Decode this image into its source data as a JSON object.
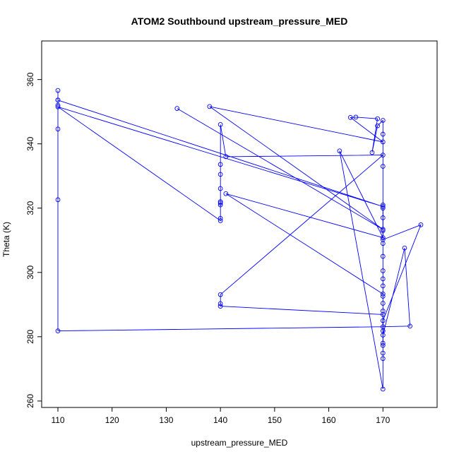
{
  "chart_data": {
    "type": "line",
    "title": "ATOM2 Southbound upstream_pressure_MED",
    "xlabel": "upstream_pressure_MED",
    "ylabel": "Theta (K)",
    "xlim": [
      107,
      180
    ],
    "ylim": [
      258,
      372
    ],
    "x_ticks": [
      110,
      120,
      130,
      140,
      150,
      160,
      170
    ],
    "y_ticks": [
      260,
      280,
      300,
      320,
      340,
      360
    ],
    "grid": false,
    "legend": "none",
    "colors": {
      "series": "#0000ff",
      "axis": "#000000"
    },
    "markers": "open-circle",
    "series": [
      {
        "values": [
          [
            110,
            356.6
          ],
          [
            110,
            353.6
          ],
          [
            110,
            352.0
          ],
          [
            110,
            344.6
          ],
          [
            110,
            322.6
          ],
          [
            110,
            281.8
          ],
          [
            170,
            283.1
          ],
          [
            175,
            283.3
          ],
          [
            174,
            307.6
          ],
          [
            170,
            280.5
          ],
          [
            170,
            285.0
          ],
          [
            177,
            314.8
          ],
          [
            170,
            310.2
          ],
          [
            170,
            321.0
          ]
        ]
      },
      {
        "values": [
          [
            110,
            353.6
          ],
          [
            170,
            320.5
          ],
          [
            110,
            351.5
          ],
          [
            140,
            316.1
          ],
          [
            140,
            316.8
          ],
          [
            140,
            322.0
          ],
          [
            140,
            321.6
          ],
          [
            140,
            321.0
          ],
          [
            140,
            326.1
          ],
          [
            140,
            330.5
          ],
          [
            140,
            333.6
          ],
          [
            140,
            346.0
          ],
          [
            141,
            336.0
          ],
          [
            170,
            336.5
          ],
          [
            140,
            293.1
          ],
          [
            140,
            290.3
          ],
          [
            140,
            289.5
          ],
          [
            170,
            286.9
          ],
          [
            170,
            278.0
          ]
        ]
      },
      {
        "values": [
          [
            132,
            351.0
          ],
          [
            170,
            313.4
          ],
          [
            138,
            351.6
          ],
          [
            170,
            340.6
          ],
          [
            164,
            348.2
          ],
          [
            165,
            348.3
          ],
          [
            169,
            347.8
          ],
          [
            168,
            337.3
          ],
          [
            169,
            345.6
          ],
          [
            170,
            347.3
          ],
          [
            170,
            343.0
          ],
          [
            170,
            333.0
          ],
          [
            170,
            320.0
          ],
          [
            170,
            317.0
          ],
          [
            170,
            313.0
          ],
          [
            170,
            309.0
          ],
          [
            170,
            305.0
          ],
          [
            170,
            300.5
          ],
          [
            170,
            298.0
          ],
          [
            170,
            295.8
          ],
          [
            170,
            292.6
          ],
          [
            170,
            290.4
          ],
          [
            170,
            288.0
          ],
          [
            170,
            281.8
          ],
          [
            170,
            277.3
          ],
          [
            170,
            274.9
          ],
          [
            170,
            273.2
          ],
          [
            170,
            263.7
          ],
          [
            162,
            337.8
          ],
          [
            170,
            310.8
          ],
          [
            141,
            324.5
          ],
          [
            170,
            293.3
          ]
        ]
      }
    ]
  }
}
